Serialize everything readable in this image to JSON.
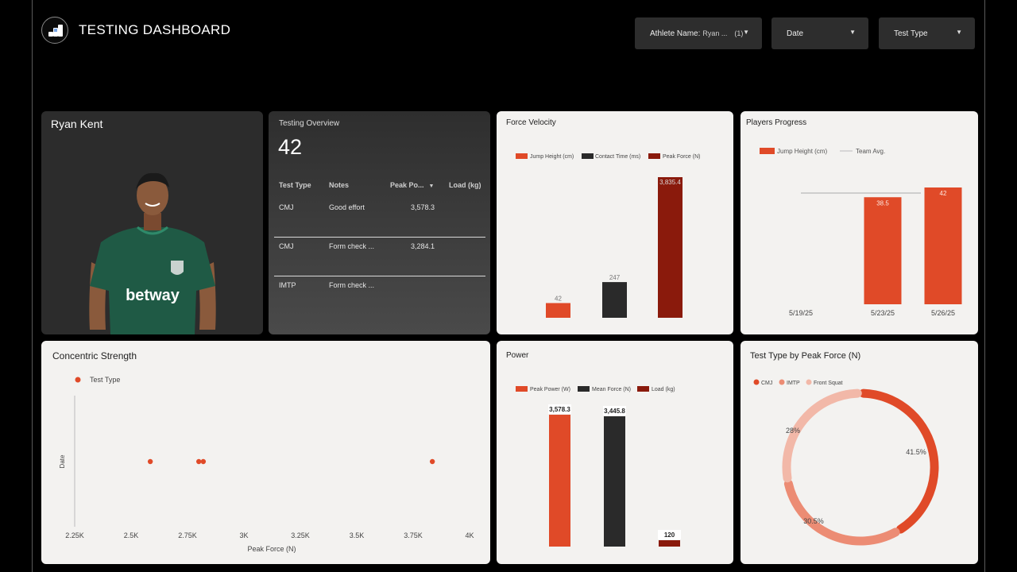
{
  "header": {
    "title": "TESTING DASHBOARD",
    "logo_icon": "app-logo-icon"
  },
  "filters": {
    "athlete_label": "Athlete Name:",
    "athlete_value": "Ryan ...",
    "athlete_count": "(1)",
    "date_label": "Date",
    "test_type_label": "Test Type"
  },
  "profile": {
    "name": "Ryan Kent"
  },
  "overview": {
    "title": "Testing Overview",
    "count": "42",
    "columns": [
      "Test Type",
      "Notes",
      "Peak Po...",
      "Load (kg)"
    ],
    "rows": [
      {
        "test_type": "CMJ",
        "notes": "Good effort",
        "peak_power": "3,578.3",
        "load": ""
      },
      {
        "test_type": "CMJ",
        "notes": "Form check ...",
        "peak_power": "3,284.1",
        "load": ""
      },
      {
        "test_type": "IMTP",
        "notes": "Form check ...",
        "peak_power": "",
        "load": ""
      }
    ]
  },
  "colors": {
    "orange": "#e04a28",
    "dark": "#2a2a2a",
    "maroon": "#8a1a0c",
    "light_orange": "#ec8c74",
    "pink": "#f2b8a8"
  },
  "chart_data": [
    {
      "id": "force_velocity",
      "type": "bar",
      "title": "Force Velocity",
      "legend_position": "top",
      "series": [
        {
          "name": "Jump Height (cm)",
          "value": 42,
          "label": "42",
          "color": "#e04a28"
        },
        {
          "name": "Contact Time (ms)",
          "value": 247,
          "label": "247",
          "color": "#2a2a2a"
        },
        {
          "name": "Peak Force (N)",
          "value": 3835.4,
          "label": "3,835.4",
          "color": "#8a1a0c"
        }
      ]
    },
    {
      "id": "players_progress",
      "type": "bar",
      "title": "Players Progress",
      "legend_position": "top",
      "series_name": "Jump Height (cm)",
      "reference_name": "Team Avg.",
      "categories": [
        "5/19/25",
        "5/23/25",
        "5/26/25"
      ],
      "values": [
        null,
        38.5,
        42
      ],
      "labels": [
        "",
        "38.5",
        "42"
      ],
      "team_avg": 40
    },
    {
      "id": "concentric_strength",
      "type": "scatter",
      "title": "Concentric Strength",
      "legend": [
        "Test Type"
      ],
      "xlabel": "Peak Force (N)",
      "ylabel": "Date",
      "xlim": [
        2250,
        4000
      ],
      "xticks": [
        "2.25K",
        "2.5K",
        "2.75K",
        "3K",
        "3.25K",
        "3.5K",
        "3.75K",
        "4K"
      ],
      "x": [
        2585,
        2800,
        2820,
        3835
      ]
    },
    {
      "id": "power",
      "type": "bar",
      "title": "Power",
      "legend_position": "top",
      "series": [
        {
          "name": "Peak Power (W)",
          "value": 3578.3,
          "label": "3,578.3",
          "color": "#e04a28"
        },
        {
          "name": "Mean Force (N)",
          "value": 3445.8,
          "label": "3,445.8",
          "color": "#2a2a2a"
        },
        {
          "name": "Load (kg)",
          "value": 120,
          "label": "120",
          "color": "#8a1a0c"
        }
      ]
    },
    {
      "id": "test_type_by_peak_force",
      "type": "pie",
      "title": "Test Type by Peak Force (N)",
      "slices": [
        {
          "name": "CMJ",
          "value": 41.5,
          "label": "41.5%",
          "color": "#e04a28"
        },
        {
          "name": "IMTP",
          "value": 30.5,
          "label": "30.5%",
          "color": "#ec8c74"
        },
        {
          "name": "Front Squat",
          "value": 28,
          "label": "28%",
          "color": "#f2b8a8"
        }
      ]
    }
  ]
}
